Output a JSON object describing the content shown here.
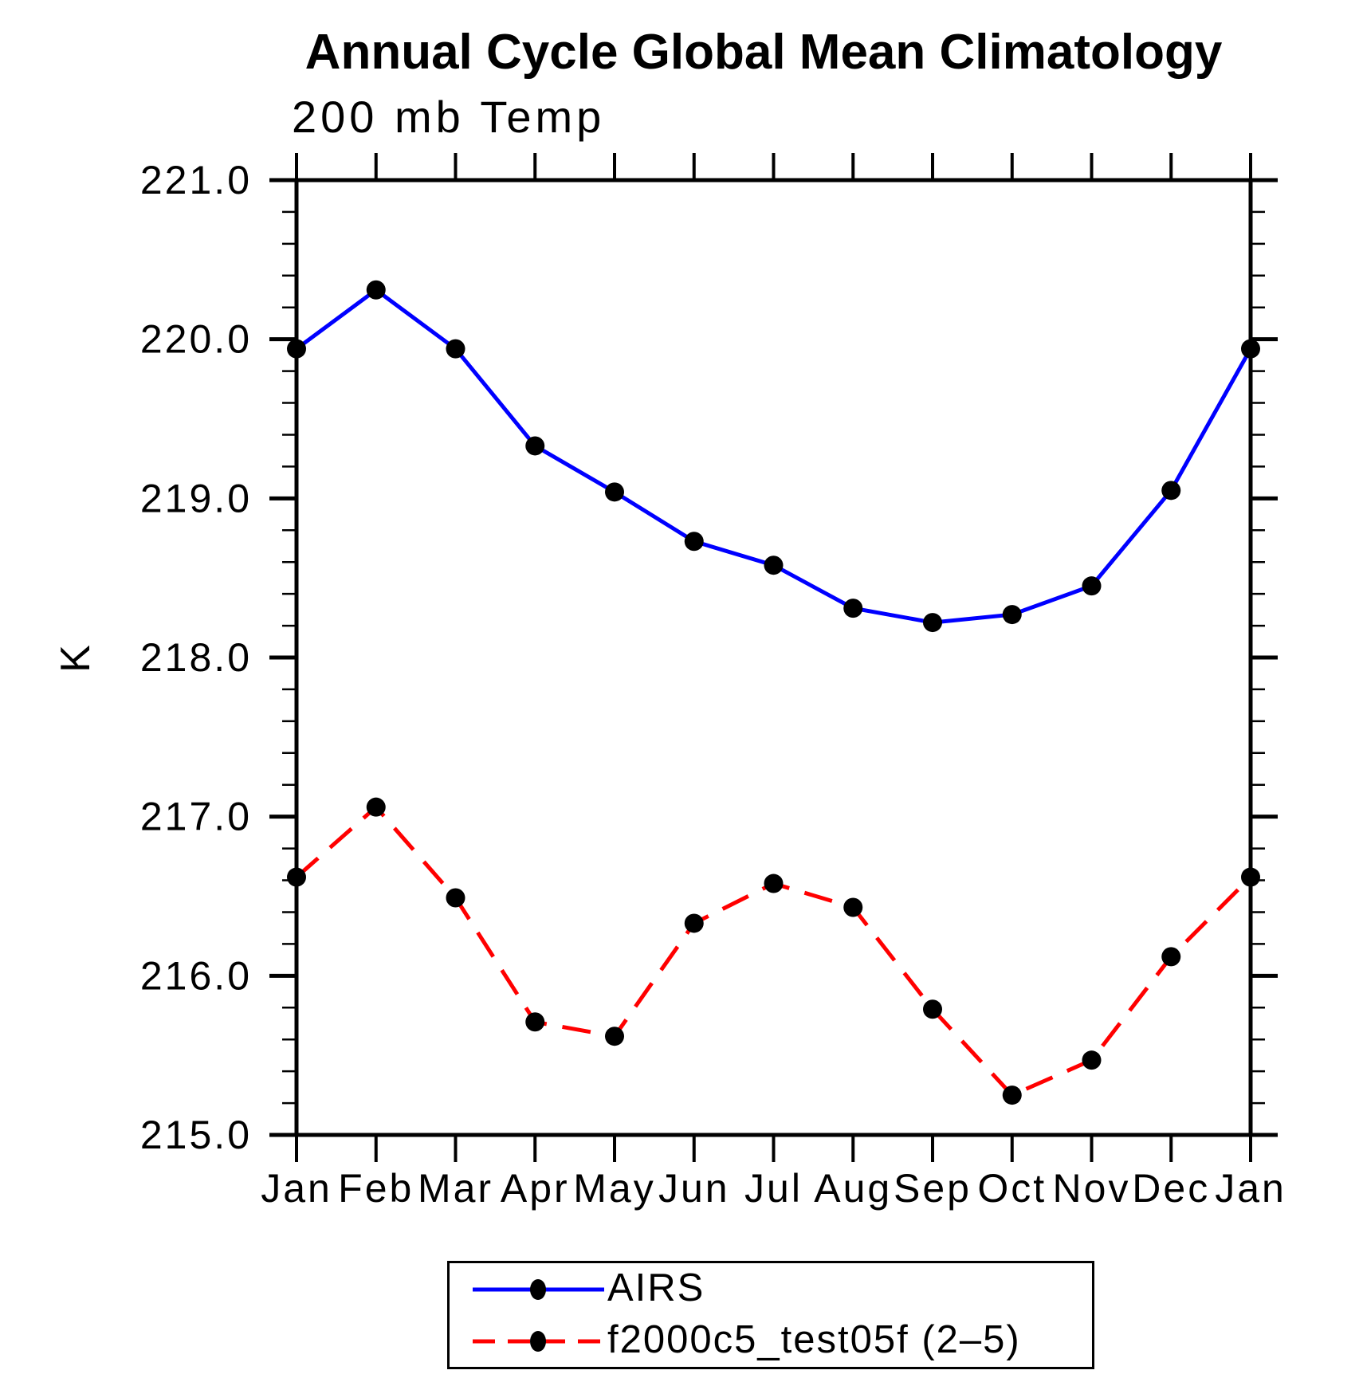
{
  "page": {
    "title": "Annual Cycle Global Mean Climatology",
    "subtitle": "200 mb Temp"
  },
  "chart_data": {
    "type": "line",
    "title": "Annual Cycle Global Mean Climatology",
    "subtitle": "200 mb Temp",
    "xlabel": "",
    "ylabel": "K",
    "x_categories": [
      "Jan",
      "Feb",
      "Mar",
      "Apr",
      "May",
      "Jun",
      "Jul",
      "Aug",
      "Sep",
      "Oct",
      "Nov",
      "Dec",
      "Jan"
    ],
    "ylim": [
      215.0,
      221.0
    ],
    "ytick_major_interval": 1.0,
    "ytick_minor_interval": 0.2,
    "ytick_labels": [
      "215.0",
      "216.0",
      "217.0",
      "218.0",
      "219.0",
      "220.0",
      "221.0"
    ],
    "grid": false,
    "legend_position": "bottom-center",
    "axis_color": "#000000",
    "marker_shape": "filled-circle",
    "series": [
      {
        "name": "AIRS",
        "color": "#0000ff",
        "line_style": "solid",
        "marker_color": "#000000",
        "values": [
          219.94,
          220.31,
          219.94,
          219.33,
          219.04,
          218.73,
          218.58,
          218.31,
          218.22,
          218.27,
          218.45,
          219.05,
          219.94
        ]
      },
      {
        "name": "f2000c5_test05f (2–5)",
        "color": "#ff0000",
        "line_style": "dashed",
        "marker_color": "#000000",
        "values": [
          216.62,
          217.06,
          216.49,
          215.71,
          215.62,
          216.33,
          216.58,
          216.43,
          215.79,
          215.25,
          215.47,
          216.12,
          216.62
        ]
      }
    ]
  }
}
